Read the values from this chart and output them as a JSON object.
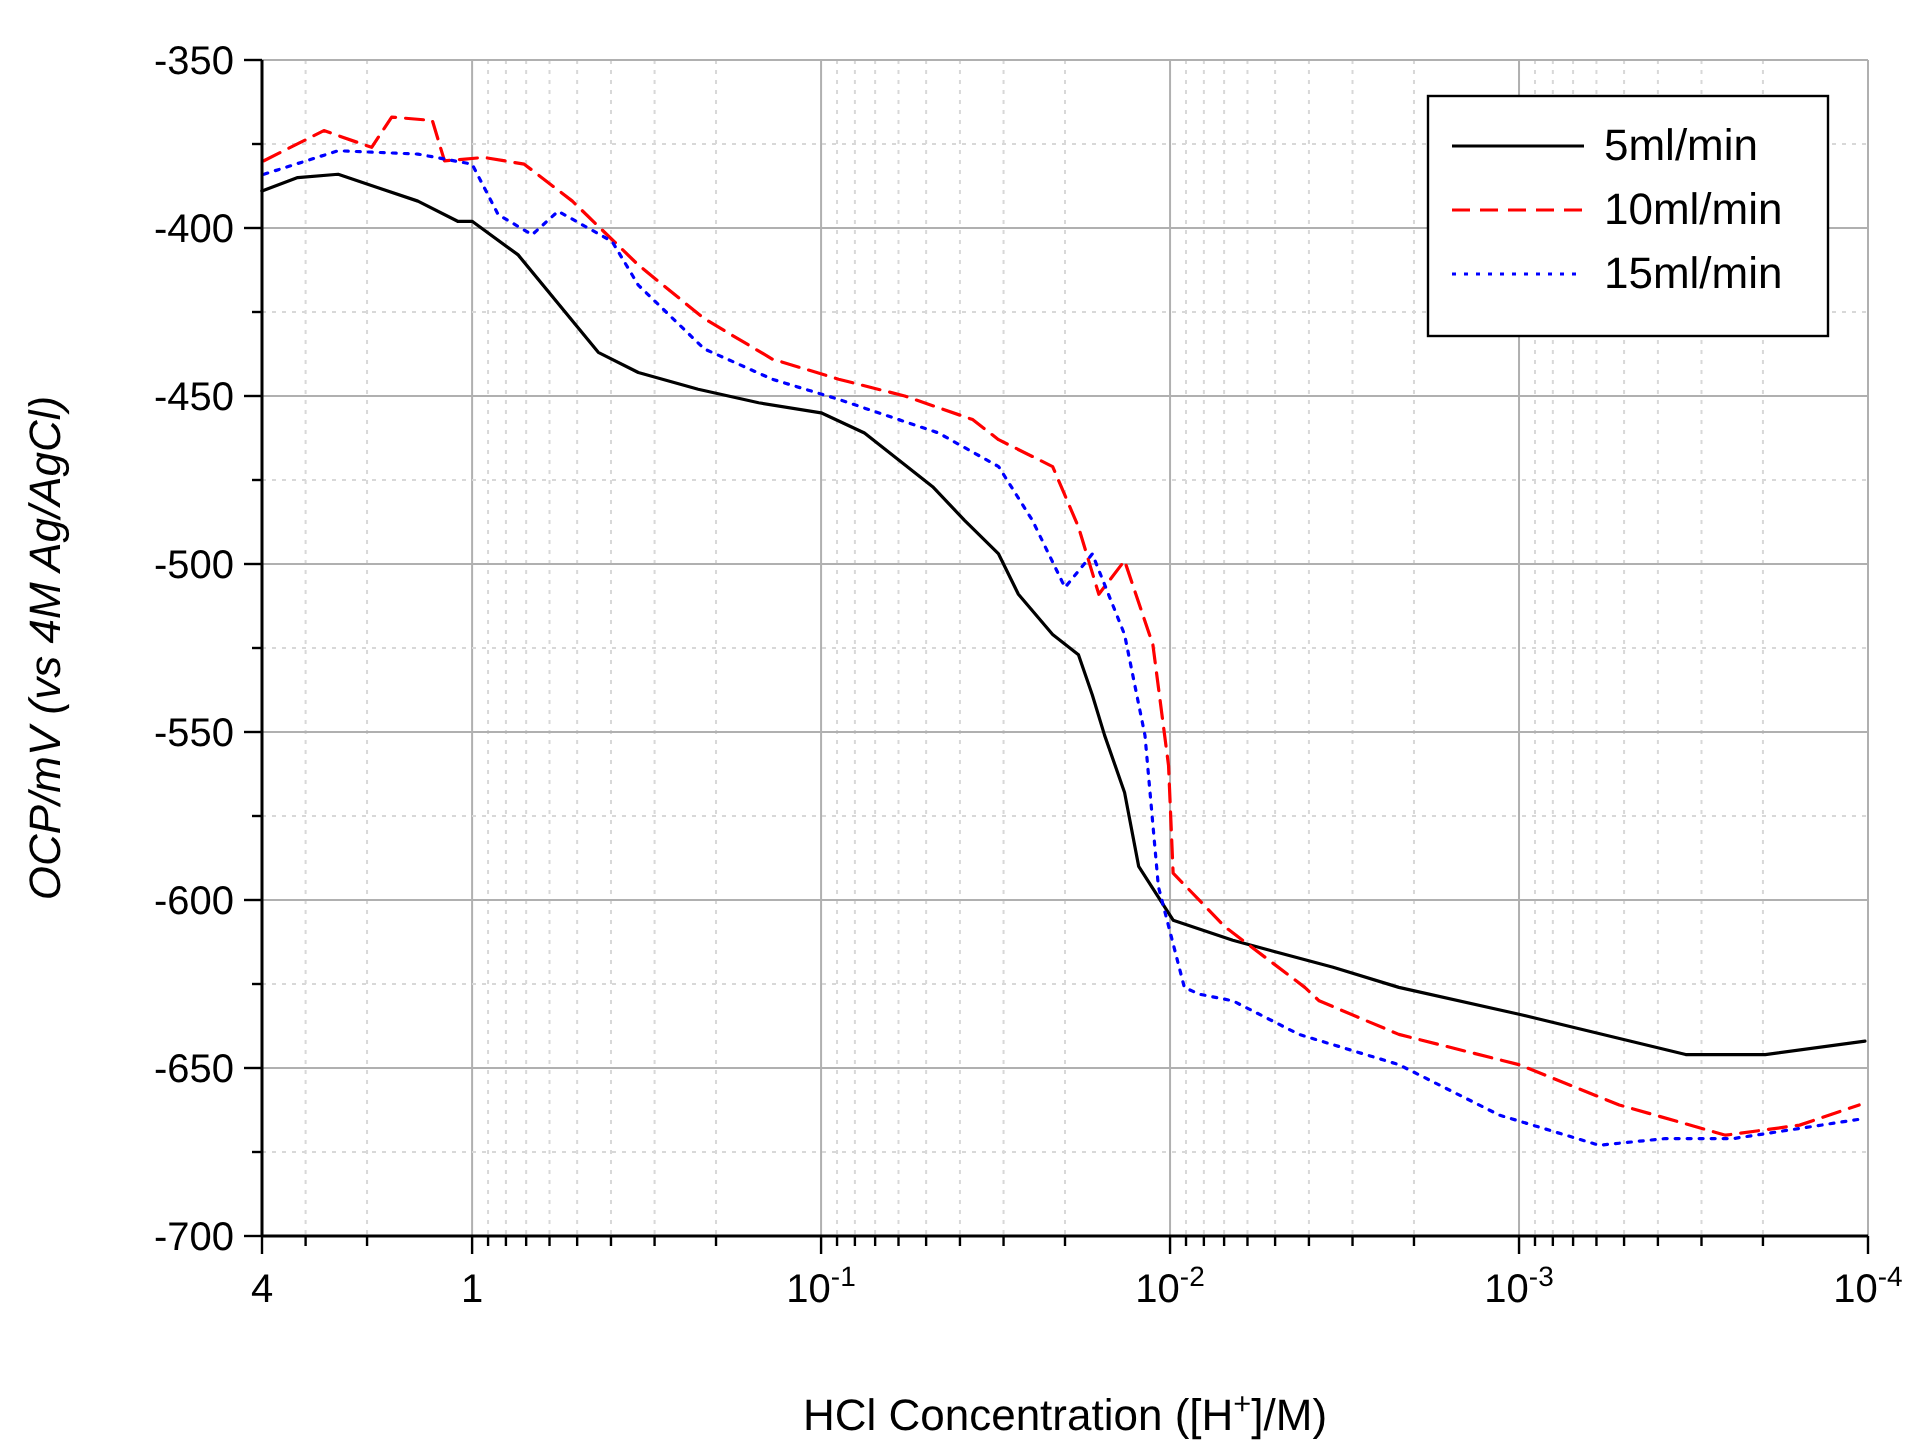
{
  "chart_data": {
    "type": "line",
    "xlabel": "HCl Concentration ([H$^{+}$]/M)",
    "ylabel": "OCP/mV (vs 4M Ag/AgCl)",
    "log": "x",
    "grid": true,
    "legend": "top right",
    "xlim": [
      4,
      0.0001
    ],
    "xticks": [
      4,
      {
        "value": 3,
        "label": null
      },
      {
        "value": 2,
        "label": null
      },
      1,
      {
        "value": 0.9,
        "label": null
      },
      {
        "value": 0.8,
        "label": null
      },
      {
        "value": 0.7,
        "label": null
      },
      {
        "value": 0.6,
        "label": null
      },
      {
        "value": 0.5,
        "label": null
      },
      {
        "value": 0.4,
        "label": null
      },
      {
        "value": 0.3,
        "label": null
      },
      {
        "value": 0.2,
        "label": null
      },
      {
        "value": 0.1,
        "label": "10$^{-1}$"
      },
      {
        "value": 0.09,
        "label": null
      },
      {
        "value": 0.08,
        "label": null
      },
      {
        "value": 0.07,
        "label": null
      },
      {
        "value": 0.06,
        "label": null
      },
      {
        "value": 0.05,
        "label": null
      },
      {
        "value": 0.04,
        "label": null
      },
      {
        "value": 0.03,
        "label": null
      },
      {
        "value": 0.02,
        "label": null
      },
      {
        "value": 0.01,
        "label": "10$^{-2}$"
      },
      {
        "value": 0.009,
        "label": null
      },
      {
        "value": 0.008,
        "label": null
      },
      {
        "value": 0.007,
        "label": null
      },
      {
        "value": 0.006,
        "label": null
      },
      {
        "value": 0.005,
        "label": null
      },
      {
        "value": 0.004,
        "label": null
      },
      {
        "value": 0.003,
        "label": null
      },
      {
        "value": 0.002,
        "label": null
      },
      {
        "value": 0.001,
        "label": "10$^{-3}$"
      },
      {
        "value": 0.0009,
        "label": null
      },
      {
        "value": 0.0008,
        "label": null
      },
      {
        "value": 0.0007,
        "label": null
      },
      {
        "value": 0.0006,
        "label": null
      },
      {
        "value": 0.0005,
        "label": null
      },
      {
        "value": 0.0004,
        "label": null
      },
      {
        "value": 0.0003,
        "label": null
      },
      {
        "value": 0.0002,
        "label": null
      },
      {
        "value": 0.0001,
        "label": "10$^{-4}$"
      }
    ],
    "ylim": [
      -700,
      -350
    ],
    "yticks": [
      -700,
      {
        "value": -675,
        "label": null
      },
      -650,
      {
        "value": -625,
        "label": null
      },
      -600,
      {
        "value": -575,
        "label": null
      },
      -550,
      {
        "value": -525,
        "label": null
      },
      -500,
      {
        "value": -475,
        "label": null
      },
      -450,
      {
        "value": -425,
        "label": null
      },
      -400,
      {
        "value": -375,
        "label": null
      },
      -350
    ],
    "series": [
      {
        "name": "5ml/min",
        "color": "#000000",
        "line_style": "solid",
        "x": [
          4,
          3.16,
          2.42,
          1.86,
          1.43,
          1.1,
          1,
          0.738,
          0.435,
          0.334,
          0.225,
          0.151,
          0.1,
          0.0751,
          0.0479,
          0.0388,
          0.031,
          0.0272,
          0.0217,
          0.0183,
          0.0167,
          0.0154,
          0.0135,
          0.0123,
          0.0098,
          0.00661,
          0.00341,
          0.00221,
          0.001,
          0.000333,
          0.000197,
          0.000102
        ],
        "values": [
          -389,
          -385,
          -384,
          -388,
          -392,
          -398,
          -398,
          -408,
          -437,
          -443,
          -448,
          -452,
          -455,
          -461,
          -477,
          -487,
          -497,
          -509,
          -521,
          -527,
          -539,
          -551,
          -568,
          -590,
          -606,
          -612,
          -620,
          -626,
          -634,
          -646,
          -646,
          -642
        ]
      },
      {
        "name": "10ml/min",
        "color": "#ff0000",
        "line_style": "dashed",
        "x": [
          3.95,
          2.66,
          1.94,
          1.7,
          1.3,
          1.2,
          0.924,
          0.709,
          0.516,
          0.334,
          0.216,
          0.138,
          0.0891,
          0.0576,
          0.0368,
          0.031,
          0.0217,
          0.0183,
          0.016,
          0.0135,
          0.0112,
          0.0101,
          0.0098,
          0.00696,
          0.00411,
          0.00374,
          0.00221,
          0.001,
          0.000516,
          0.000256,
          0.000157,
          0.000106
        ],
        "values": [
          -380,
          -371,
          -376,
          -367,
          -368,
          -380,
          -379,
          -381,
          -392,
          -411,
          -427,
          -439,
          -445,
          -450,
          -457,
          -463,
          -471,
          -489,
          -509,
          -499,
          -524,
          -560,
          -592,
          -608,
          -626,
          -630,
          -640,
          -649,
          -661,
          -670,
          -667,
          -661
        ]
      },
      {
        "name": "15ml/min",
        "color": "#0000ff",
        "line_style": "dotted",
        "x": [
          3.95,
          2.42,
          1.43,
          1,
          0.842,
          0.673,
          0.567,
          0.397,
          0.334,
          0.216,
          0.138,
          0.0891,
          0.0461,
          0.031,
          0.0248,
          0.02,
          0.0167,
          0.0135,
          0.0118,
          0.0108,
          0.0091,
          0.00827,
          0.00661,
          0.00427,
          0.00221,
          0.00114,
          0.000589,
          0.000381,
          0.000243,
          0.000102
        ],
        "values": [
          -384,
          -377,
          -378,
          -381,
          -396,
          -402,
          -395,
          -404,
          -417,
          -436,
          -445,
          -451,
          -461,
          -471,
          -487,
          -507,
          -497,
          -521,
          -551,
          -596,
          -626,
          -628,
          -630,
          -640,
          -649,
          -664,
          -673,
          -671,
          -671,
          -665
        ]
      }
    ]
  }
}
